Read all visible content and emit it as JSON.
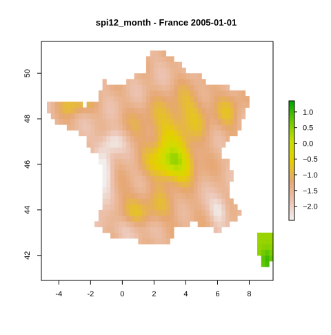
{
  "title": "spi12_month - France 2005-01-01",
  "x_axis": {
    "ticks": [
      -4,
      -2,
      0,
      2,
      4,
      6,
      8
    ],
    "range": [
      -5.1,
      9.5
    ]
  },
  "y_axis": {
    "ticks": [
      42,
      44,
      46,
      48,
      50
    ],
    "range": [
      40.9,
      51.4
    ]
  },
  "legend": {
    "ticks": [
      1.0,
      0.5,
      0.0,
      -0.5,
      -1.0,
      -1.5,
      -2.0
    ],
    "tick_labels": [
      "1.0",
      "0.5",
      "0.0",
      "−0.5",
      "−1.0",
      "−1.5",
      "−2.0"
    ],
    "range": [
      -2.45,
      1.35
    ],
    "colors": [
      "#f2f2f2",
      "#ecc3b1",
      "#e6a773",
      "#e6cf00",
      "#c8e000",
      "#6dc900",
      "#00a600"
    ]
  }
}
